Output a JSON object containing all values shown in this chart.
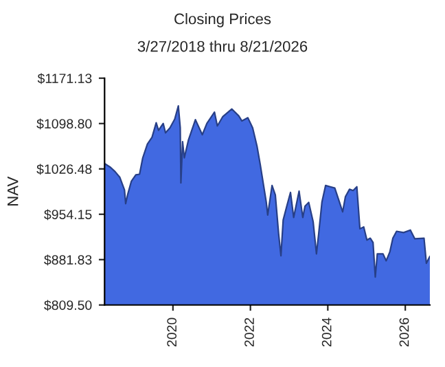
{
  "chart_data": {
    "type": "area",
    "title": "Closing Prices",
    "subtitle": "3/27/2018 thru 8/21/2026",
    "ylabel": "NAV",
    "x": [
      "2018-03-27",
      "2018-05-22",
      "2018-07-05",
      "2018-08-18",
      "2018-10-01",
      "2018-10-12",
      "2018-10-30",
      "2018-12-05",
      "2019-01-16",
      "2019-02-20",
      "2019-03-22",
      "2019-05-05",
      "2019-06-18",
      "2019-07-27",
      "2019-08-18",
      "2019-10-01",
      "2019-10-23",
      "2019-12-04",
      "2020-01-18",
      "2020-02-21",
      "2020-03-10",
      "2020-03-16",
      "2020-04-01",
      "2020-04-17",
      "2020-05-27",
      "2020-07-31",
      "2020-10-04",
      "2020-11-16",
      "2021-01-27",
      "2021-02-23",
      "2021-04-16",
      "2021-07-09",
      "2021-09-13",
      "2021-10-12",
      "2021-12-08",
      "2022-01-22",
      "2022-03-05",
      "2022-04-04",
      "2022-05-30",
      "2022-06-13",
      "2022-07-24",
      "2022-08-24",
      "2022-09-24",
      "2022-10-16",
      "2022-11-06",
      "2022-12-10",
      "2023-01-14",
      "2023-02-13",
      "2023-03-07",
      "2023-04-05",
      "2023-05-10",
      "2023-05-31",
      "2023-07-05",
      "2023-08-16",
      "2023-09-16",
      "2023-10-07",
      "2023-11-07",
      "2023-12-11",
      "2024-01-24",
      "2024-03-07",
      "2024-04-19",
      "2024-05-20",
      "2024-06-15",
      "2024-07-24",
      "2024-08-27",
      "2024-10-01",
      "2024-10-30",
      "2024-12-05",
      "2025-01-04",
      "2025-02-05",
      "2025-03-03",
      "2025-03-24",
      "2025-04-12",
      "2025-06-05",
      "2025-07-05",
      "2025-08-08",
      "2025-09-06",
      "2025-10-11",
      "2025-12-16",
      "2026-02-18",
      "2026-04-01",
      "2026-06-27",
      "2026-07-19",
      "2026-08-21"
    ],
    "values": [
      1035,
      1029,
      1022,
      1013,
      993,
      971,
      985,
      1007,
      1017,
      1018,
      1044,
      1066,
      1077,
      1100,
      1088,
      1099,
      1084,
      1092,
      1106,
      1127,
      1092,
      1004,
      1070,
      1044,
      1073,
      1105,
      1081,
      1099,
      1117,
      1095,
      1110,
      1122,
      1111,
      1103,
      1108,
      1092,
      1062,
      1033,
      974,
      953,
      1000,
      985,
      923,
      888,
      945,
      967,
      989,
      949,
      967,
      991,
      949,
      967,
      973,
      942,
      891,
      923,
      974,
      1000,
      998,
      996,
      974,
      958,
      982,
      994,
      992,
      998,
      931,
      934,
      913,
      916,
      909,
      854,
      891,
      891,
      880,
      894,
      916,
      927,
      925,
      929,
      915,
      916,
      876,
      887
    ],
    "color": "#4169e1",
    "xlim": [
      "2018-03-27",
      "2026-08-21"
    ],
    "xticks": [
      "2020",
      "2022",
      "2024",
      "2026"
    ],
    "ylim": [
      809.5,
      1171.13
    ],
    "yticks": [
      {
        "value": 809.5,
        "label": "$809.50"
      },
      {
        "value": 881.83,
        "label": "$881.83"
      },
      {
        "value": 954.15,
        "label": "$954.15"
      },
      {
        "value": 1026.48,
        "label": "$1026.48"
      },
      {
        "value": 1098.8,
        "label": "$1098.80"
      },
      {
        "value": 1171.13,
        "label": "$1171.13"
      }
    ],
    "grid": false,
    "legend": false
  }
}
